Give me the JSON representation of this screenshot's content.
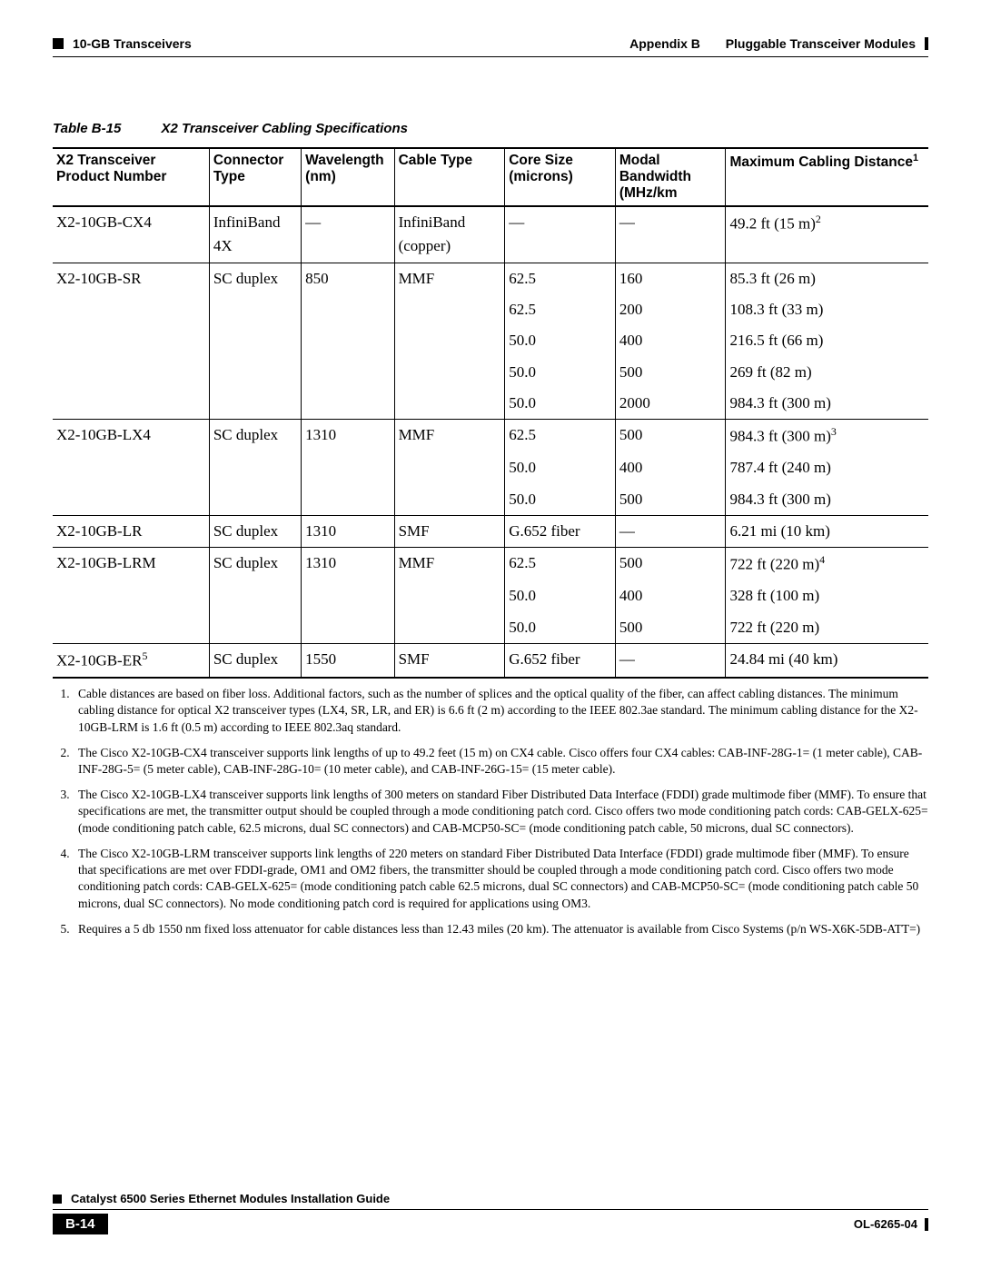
{
  "header": {
    "left_section": "10-GB Transceivers",
    "right_appendix": "Appendix B",
    "right_title": "Pluggable Transceiver Modules"
  },
  "table": {
    "caption_num": "Table B-15",
    "caption_text": "X2 Transceiver Cabling Specifications",
    "headers": {
      "c0": "X2 Transceiver Product Number",
      "c1": "Connector Type",
      "c2": "Wavelength (nm)",
      "c3": "Cable Type",
      "c4": "Core Size (microns)",
      "c5": "Modal Bandwidth (MHz/km",
      "c6_a": "Maximum Cabling Distance",
      "c6_sup": "1"
    },
    "rows": [
      {
        "group_first": true,
        "c0": "X2-10GB-CX4",
        "c1": "InfiniBand 4X",
        "c2": "—",
        "c3": "InfiniBand (copper)",
        "c4": "—",
        "c5": "—",
        "c6": "49.2 ft (15 m)",
        "c6_sup": "2"
      },
      {
        "group_first": true,
        "c0": "X2-10GB-SR",
        "c1": "SC duplex",
        "c2": "850",
        "c3": "MMF",
        "c4": "62.5",
        "c5": "160",
        "c6": "85.3 ft (26 m)"
      },
      {
        "c4": "62.5",
        "c5": "200",
        "c6": "108.3 ft (33 m)"
      },
      {
        "c4": "50.0",
        "c5": "400",
        "c6": "216.5 ft (66 m)"
      },
      {
        "c4": "50.0",
        "c5": "500",
        "c6": "269 ft (82 m)"
      },
      {
        "c4": "50.0",
        "c5": "2000",
        "c6": "984.3 ft (300 m)"
      },
      {
        "group_first": true,
        "c0": "X2-10GB-LX4",
        "c1": "SC duplex",
        "c2": "1310",
        "c3": "MMF",
        "c4": "62.5",
        "c5": "500",
        "c6": "984.3 ft (300 m)",
        "c6_sup": "3"
      },
      {
        "c4": "50.0",
        "c5": "400",
        "c6": "787.4 ft (240 m)"
      },
      {
        "c4": "50.0",
        "c5": "500",
        "c6": "984.3 ft (300 m)"
      },
      {
        "group_first": true,
        "c0": "X2-10GB-LR",
        "c1": "SC duplex",
        "c2": "1310",
        "c3": "SMF",
        "c4": "G.652 fiber",
        "c5": "—",
        "c6": "6.21 mi (10 km)"
      },
      {
        "group_first": true,
        "c0": "X2-10GB-LRM",
        "c1": "SC duplex",
        "c2": "1310",
        "c3": "MMF",
        "c4": "62.5",
        "c5": "500",
        "c6": "722 ft (220 m)",
        "c6_sup": "4"
      },
      {
        "c4": "50.0",
        "c5": "400",
        "c6": "328 ft (100 m)"
      },
      {
        "c4": "50.0",
        "c5": "500",
        "c6": "722 ft (220 m)"
      },
      {
        "group_first": true,
        "last": true,
        "c0": "X2-10GB-ER",
        "c0_sup": "5",
        "c1": "SC duplex",
        "c2": "1550",
        "c3": "SMF",
        "c4": "G.652 fiber",
        "c5": "—",
        "c6": "24.84 mi (40 km)"
      }
    ]
  },
  "footnotes": [
    "Cable distances are based on fiber loss. Additional factors, such as the number of splices and the optical quality of the fiber, can affect cabling distances. The minimum cabling distance for optical X2 transceiver types (LX4, SR, LR, and ER) is 6.6 ft (2 m) according to the IEEE 802.3ae standard. The minimum cabling distance for the X2-10GB-LRM is 1.6 ft (0.5 m) according to IEEE 802.3aq standard.",
    "The Cisco X2-10GB-CX4 transceiver supports link lengths of up to 49.2 feet (15 m) on CX4 cable. Cisco offers four CX4 cables: CAB-INF-28G-1= (1 meter cable), CAB-INF-28G-5= (5 meter cable), CAB-INF-28G-10= (10 meter cable), and CAB-INF-26G-15= (15 meter cable).",
    "The Cisco X2-10GB-LX4 transceiver supports link lengths of 300 meters on standard Fiber Distributed Data Interface (FDDI) grade multimode fiber (MMF). To ensure that specifications are met, the transmitter output should be coupled through a mode conditioning patch cord. Cisco offers two mode conditioning patch cords: CAB-GELX-625= (mode conditioning patch cable, 62.5 microns, dual SC connectors) and CAB-MCP50-SC= (mode conditioning patch cable, 50 microns, dual SC connectors).",
    "The Cisco X2-10GB-LRM transceiver supports link lengths of 220 meters on standard Fiber Distributed Data Interface (FDDI) grade multimode fiber (MMF). To ensure that specifications are met over FDDI-grade, OM1 and OM2 fibers, the transmitter should be coupled through a mode conditioning patch cord. Cisco offers two mode conditioning patch cords: CAB-GELX-625= (mode conditioning patch cable 62.5 microns, dual SC connectors) and CAB-MCP50-SC= (mode conditioning patch cable 50 microns, dual SC connectors). No mode conditioning patch cord is required for applications using OM3.",
    "Requires a 5 db 1550 nm fixed loss attenuator for cable distances less than 12.43 miles (20 km). The attenuator is available from Cisco Systems (p/n WS-X6K-5DB-ATT=)"
  ],
  "footer": {
    "guide": "Catalyst 6500 Series Ethernet Modules Installation Guide",
    "page": "B-14",
    "docnum": "OL-6265-04"
  }
}
